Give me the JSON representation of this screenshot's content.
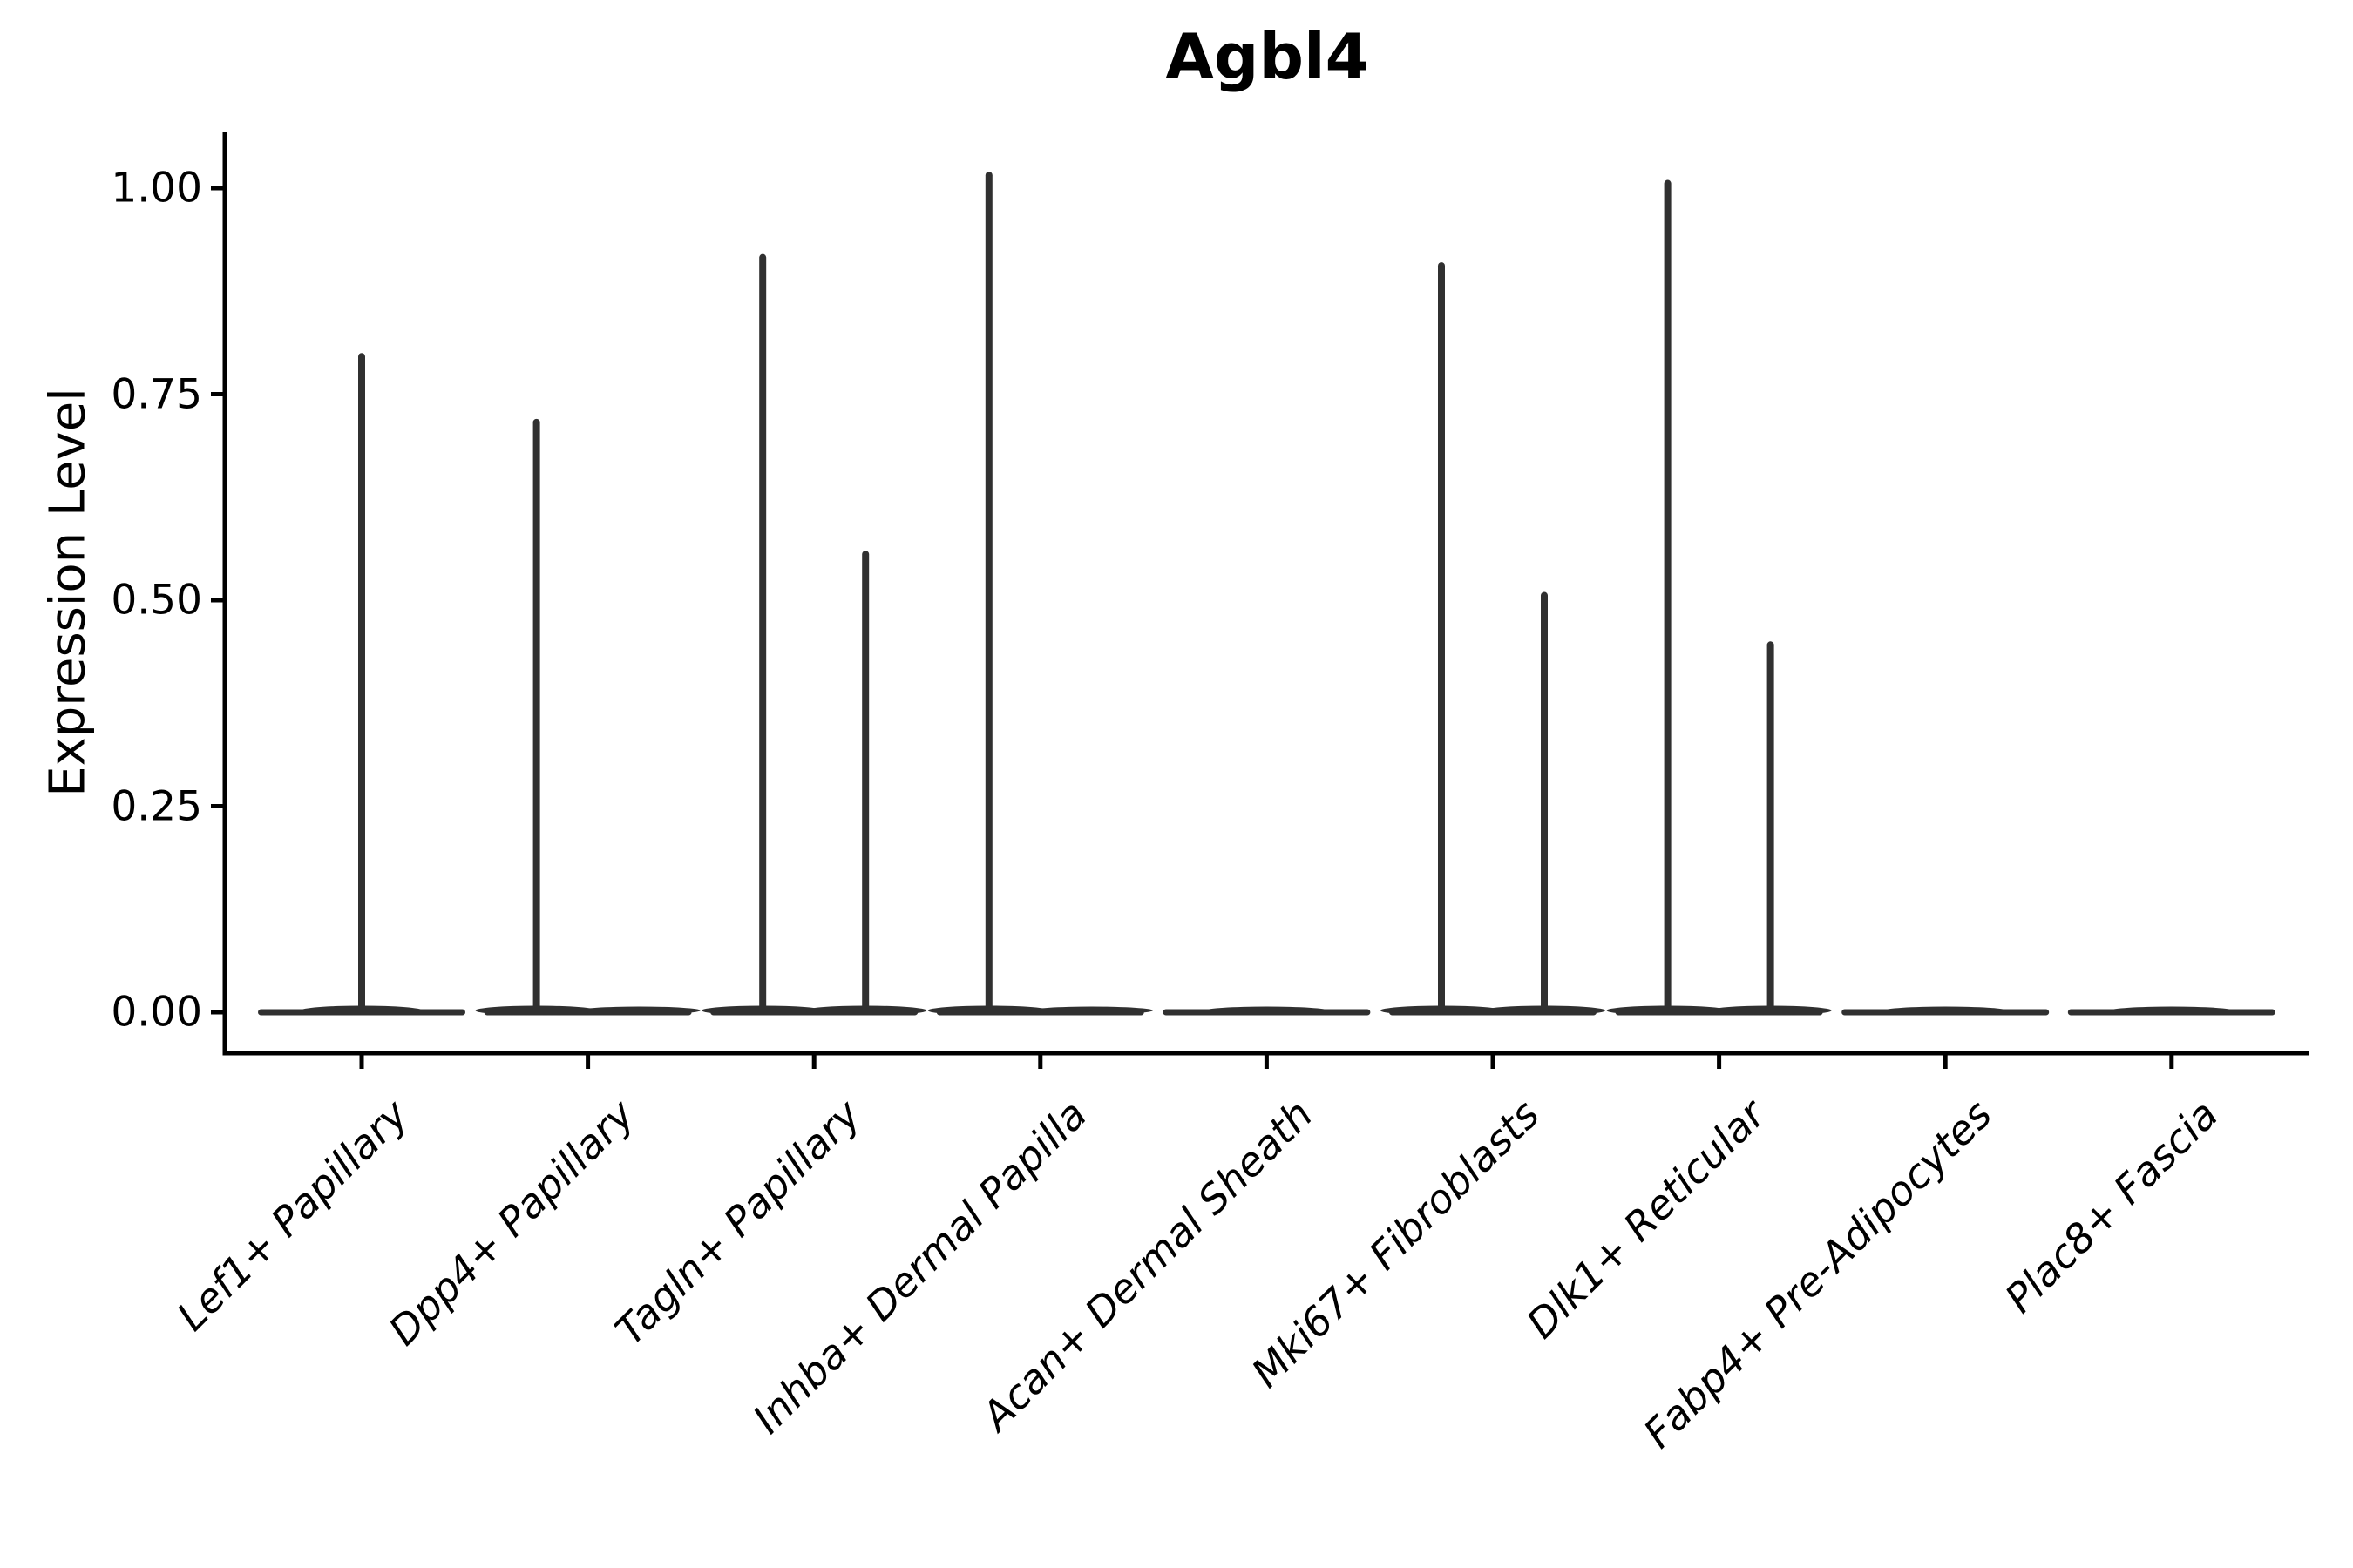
{
  "chart_data": {
    "type": "violin",
    "title": "Agbl4",
    "ylabel": "Expression Level",
    "xlabel": "",
    "ylim": [
      0,
      1.07
    ],
    "grid": false,
    "legend": "none",
    "background": "#ffffff",
    "colors": {
      "violin": "#303030",
      "axis": "#000000",
      "text": "#000000"
    },
    "y_ticks": [
      {
        "label": "0.00",
        "value": 0.0
      },
      {
        "label": "0.25",
        "value": 0.25
      },
      {
        "label": "0.50",
        "value": 0.5
      },
      {
        "label": "0.75",
        "value": 0.75
      },
      {
        "label": "1.00",
        "value": 1.0
      }
    ],
    "categories": [
      "Lef1+ Papillary",
      "Dpp4+ Papillary",
      "Tagln+ Papillary",
      "Inhba+ Dermal Papilla",
      "Acan+ Dermal Sheath",
      "Mki67+ Fibroblasts",
      "Dlk1+ Reticular",
      "Fabp4+ Pre-Adipocytes",
      "Plac8+ Fascia"
    ],
    "series": [
      {
        "category": "Lef1+ Papillary",
        "violins": [
          {
            "dodge": "center",
            "max_expression": 0.8
          }
        ]
      },
      {
        "category": "Dpp4+ Papillary",
        "violins": [
          {
            "dodge": "left",
            "max_expression": 0.72
          },
          {
            "dodge": "right",
            "max_expression": 0
          }
        ]
      },
      {
        "category": "Tagln+ Papillary",
        "violins": [
          {
            "dodge": "left",
            "max_expression": 0.92
          },
          {
            "dodge": "right",
            "max_expression": 0.56
          }
        ]
      },
      {
        "category": "Inhba+ Dermal Papilla",
        "violins": [
          {
            "dodge": "left",
            "max_expression": 1.02
          },
          {
            "dodge": "right",
            "max_expression": 0
          }
        ]
      },
      {
        "category": "Acan+ Dermal Sheath",
        "violins": [
          {
            "dodge": "center",
            "max_expression": 0
          }
        ]
      },
      {
        "category": "Mki67+ Fibroblasts",
        "violins": [
          {
            "dodge": "left",
            "max_expression": 0.91
          },
          {
            "dodge": "right",
            "max_expression": 0.51
          }
        ]
      },
      {
        "category": "Dlk1+ Reticular",
        "violins": [
          {
            "dodge": "left",
            "max_expression": 1.01
          },
          {
            "dodge": "right",
            "max_expression": 0.45
          }
        ]
      },
      {
        "category": "Fabp4+ Pre-Adipocytes",
        "violins": [
          {
            "dodge": "center",
            "max_expression": 0
          }
        ]
      },
      {
        "category": "Plac8+ Fascia",
        "violins": [
          {
            "dodge": "center",
            "max_expression": 0
          }
        ]
      }
    ]
  }
}
